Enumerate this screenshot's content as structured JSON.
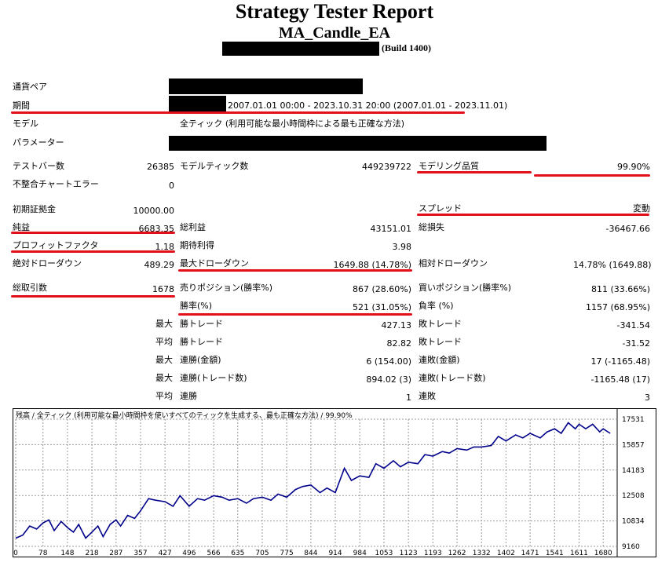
{
  "header": {
    "title": "Strategy Tester Report",
    "ea_name": "MA_Candle_EA",
    "build": "(Build 1400)"
  },
  "info": {
    "symbol_label": "通貨ペア",
    "period_label": "期間",
    "period_value": "2007.01.01 00:00 - 2023.10.31 20:00 (2007.01.01 - 2023.11.01)",
    "model_label": "モデル",
    "model_value": "全ティック (利用可能な最小時間枠による最も正確な方法)",
    "params_label": "パラメーター"
  },
  "stats": {
    "bars_label": "テストバー数",
    "bars_value": "26385",
    "ticks_label": "モデルティック数",
    "ticks_value": "449239722",
    "quality_label": "モデリング品質",
    "quality_value": "99.90%",
    "mismatch_label": "不整合チャートエラー",
    "mismatch_value": "0",
    "deposit_label": "初期証拠金",
    "deposit_value": "10000.00",
    "spread_label": "スプレッド",
    "spread_value": "変動",
    "net_label": "純益",
    "net_value": "6683.35",
    "gross_profit_label": "総利益",
    "gross_profit_value": "43151.01",
    "gross_loss_label": "総損失",
    "gross_loss_value": "-36467.66",
    "pf_label": "プロフィットファクタ",
    "pf_value": "1.18",
    "expected_label": "期待利得",
    "expected_value": "3.98",
    "abs_dd_label": "絶対ドローダウン",
    "abs_dd_value": "489.29",
    "max_dd_label": "最大ドローダウン",
    "max_dd_value": "1649.88 (14.78%)",
    "rel_dd_label": "相対ドローダウン",
    "rel_dd_value": "14.78% (1649.88)",
    "total_label": "総取引数",
    "total_value": "1678",
    "short_label": "売りポジション(勝率%)",
    "short_value": "867 (28.60%)",
    "long_label": "買いポジション(勝率%)",
    "long_value": "811 (33.66%)",
    "win_label": "勝率(%)",
    "win_value": "521 (31.05%)",
    "loss_label": "負率 (%)",
    "loss_value": "1157 (68.95%)",
    "max": "最大",
    "avg": "平均",
    "big_win_label": "勝トレード",
    "big_win_value": "427.13",
    "big_loss_label": "敗トレード",
    "big_loss_value": "-341.54",
    "avg_win_label": "勝トレード",
    "avg_win_value": "82.82",
    "avg_loss_label": "敗トレード",
    "avg_loss_value": "-31.52",
    "cw_money_label": "連勝(金額)",
    "cw_money_value": "6 (154.00)",
    "cl_money_label": "連敗(金額)",
    "cl_money_value": "17 (-1165.48)",
    "cw_count_label": "連勝(トレード数)",
    "cw_count_value": "894.02 (3)",
    "cl_count_label": "連敗(トレード数)",
    "cl_count_value": "-1165.48 (17)",
    "avg_cw_label": "連勝",
    "avg_cw_value": "1",
    "avg_cl_label": "連敗",
    "avg_cl_value": "3"
  },
  "chart_data": {
    "type": "line",
    "title": "残高 / 全ティック (利用可能な最小時間枠を使いすべてのティックを生成する、最も正確な方法) / 99.90%",
    "x_ticks": [
      "0",
      "78",
      "148",
      "218",
      "287",
      "357",
      "427",
      "496",
      "566",
      "635",
      "705",
      "775",
      "844",
      "914",
      "984",
      "1053",
      "1123",
      "1193",
      "1262",
      "1332",
      "1402",
      "1471",
      "1541",
      "1611",
      "1680"
    ],
    "y_ticks": [
      "17531",
      "15857",
      "14183",
      "12508",
      "10834",
      "9160"
    ],
    "ylim": [
      9160,
      17531
    ],
    "xlim": [
      0,
      1720
    ],
    "line_color": "#00008b",
    "series": [
      {
        "x": [
          0,
          20,
          40,
          60,
          78,
          95,
          110,
          130,
          148,
          165,
          180,
          200,
          218,
          235,
          250,
          270,
          287,
          300,
          320,
          340,
          357,
          380,
          400,
          427,
          450,
          470,
          496,
          520,
          540,
          566,
          590,
          610,
          635,
          660,
          680,
          705,
          730,
          750,
          775,
          800,
          820,
          844,
          870,
          890,
          914,
          940,
          960,
          984,
          1010,
          1030,
          1053,
          1080,
          1100,
          1123,
          1150,
          1170,
          1193,
          1220,
          1240,
          1262,
          1290,
          1310,
          1332,
          1360,
          1380,
          1402,
          1430,
          1450,
          1471,
          1500,
          1520,
          1541,
          1560,
          1580,
          1600,
          1611,
          1630,
          1650,
          1670,
          1680,
          1700
        ],
        "y": [
          9700,
          9900,
          10500,
          10300,
          10700,
          10900,
          10200,
          10800,
          10400,
          10100,
          10600,
          9700,
          10100,
          10500,
          9800,
          10600,
          10900,
          10500,
          11200,
          11000,
          11500,
          12300,
          12200,
          12100,
          11800,
          12500,
          11800,
          12300,
          12200,
          12500,
          12400,
          12200,
          12300,
          12000,
          12300,
          12400,
          12200,
          12600,
          12400,
          12900,
          13100,
          13200,
          12700,
          13000,
          12700,
          14300,
          13500,
          13800,
          13700,
          14600,
          14300,
          14800,
          14400,
          14700,
          14600,
          15200,
          15100,
          15400,
          15300,
          15600,
          15500,
          15700,
          15700,
          15800,
          16400,
          16100,
          16500,
          16300,
          16600,
          16300,
          16700,
          16900,
          16600,
          17300,
          16900,
          17200,
          16900,
          17200,
          16700,
          16900,
          16600
        ]
      }
    ]
  }
}
